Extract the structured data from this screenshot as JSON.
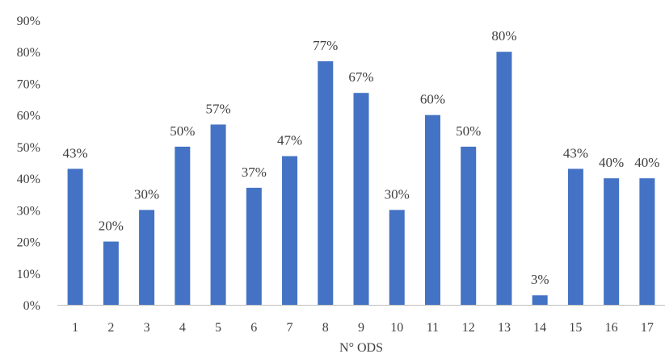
{
  "chart_data": {
    "type": "bar",
    "categories": [
      "1",
      "2",
      "3",
      "4",
      "5",
      "6",
      "7",
      "8",
      "9",
      "10",
      "11",
      "12",
      "13",
      "14",
      "15",
      "16",
      "17"
    ],
    "values": [
      43,
      20,
      30,
      50,
      57,
      37,
      47,
      77,
      67,
      30,
      60,
      50,
      80,
      3,
      43,
      40,
      40
    ],
    "data_labels": [
      "43%",
      "20%",
      "30%",
      "50%",
      "57%",
      "37%",
      "47%",
      "77%",
      "67%",
      "30%",
      "60%",
      "50%",
      "80%",
      "3%",
      "43%",
      "40%",
      "40%"
    ],
    "yticks": [
      "0%",
      "10%",
      "20%",
      "30%",
      "40%",
      "50%",
      "60%",
      "70%",
      "80%",
      "90%"
    ],
    "ylim": [
      0,
      90
    ],
    "xlabel": "N° ODS",
    "ylabel": "",
    "title": "",
    "grid": false,
    "legend": "none",
    "bar_color": "#4472c4"
  }
}
